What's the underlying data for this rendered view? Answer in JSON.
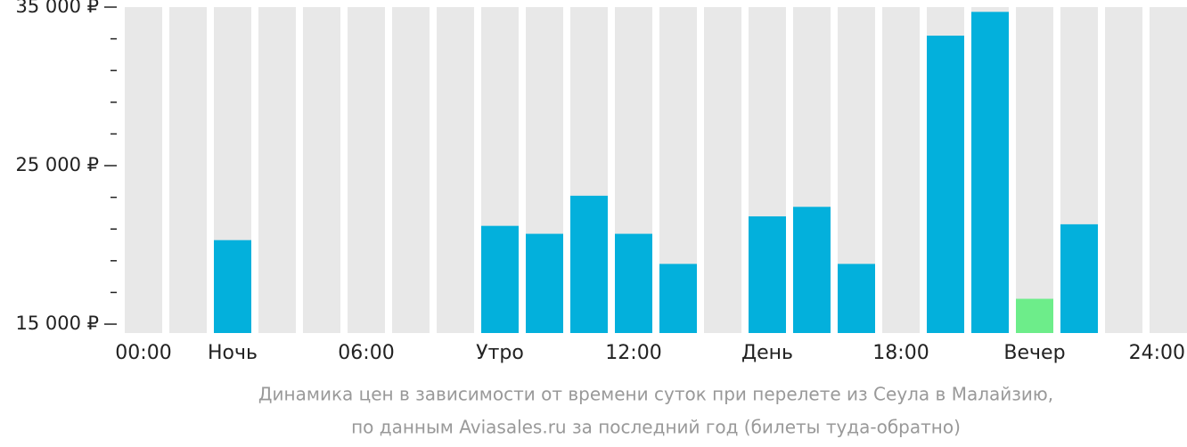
{
  "chart_data": {
    "type": "bar",
    "categories": [
      "00:00",
      null,
      "Ночь",
      null,
      null,
      "06:00",
      null,
      null,
      "Утро",
      null,
      null,
      "12:00",
      null,
      null,
      "День",
      null,
      null,
      "18:00",
      null,
      null,
      "Вечер",
      null,
      null,
      "24:00"
    ],
    "values": [
      null,
      null,
      20300,
      null,
      null,
      null,
      null,
      null,
      21200,
      20700,
      23100,
      20700,
      18800,
      null,
      21800,
      22400,
      18800,
      null,
      33200,
      34700,
      16600,
      21300,
      null,
      null
    ],
    "color": "#03b0dc",
    "lowest_color": "#6ded8a",
    "background_color": "#e8e8e8",
    "ylim": [
      14440,
      35000
    ],
    "yticks": [
      {
        "value": 15000,
        "label": "15 000 ₽"
      },
      {
        "value": 25000,
        "label": "25 000 ₽"
      },
      {
        "value": 35000,
        "label": "35 000 ₽"
      }
    ],
    "minor_yticks": [
      17000,
      19000,
      21000,
      23000,
      27000,
      29000,
      31000,
      33000
    ],
    "caption": [
      "Динамика цен в зависимости от времени суток при перелете из Сеула в Малайзию,",
      "по данным Aviasales.ru за последний год (билеты туда-обратно)"
    ]
  }
}
